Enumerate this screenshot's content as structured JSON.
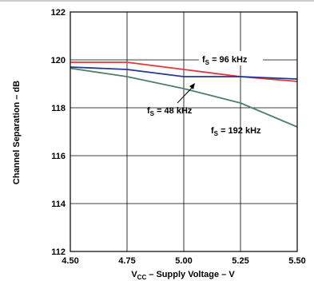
{
  "chart_data": {
    "type": "line",
    "title": "",
    "xlabel_main": "V",
    "xlabel_sub": "CC",
    "xlabel_rest": " – Supply Voltage – V",
    "ylabel": "Channel Separation – dB",
    "xlim": [
      4.5,
      5.5
    ],
    "ylim": [
      112,
      122
    ],
    "x_ticks": [
      "4.50",
      "4.75",
      "5.00",
      "5.25",
      "5.50"
    ],
    "y_ticks": [
      "112",
      "114",
      "116",
      "118",
      "120",
      "122"
    ],
    "grid": true,
    "series": [
      {
        "name": "96 kHz",
        "color": "#e8343c",
        "x": [
          4.5,
          4.75,
          5.0,
          5.25,
          5.5
        ],
        "y": [
          119.9,
          119.9,
          119.6,
          119.3,
          119.1
        ]
      },
      {
        "name": "48 kHz",
        "color": "#1f3a93",
        "x": [
          4.5,
          4.75,
          5.0,
          5.25,
          5.5
        ],
        "y": [
          119.7,
          119.6,
          119.3,
          119.3,
          119.2
        ]
      },
      {
        "name": "192 kHz",
        "color": "#4f7f6a",
        "x": [
          4.5,
          4.75,
          5.0,
          5.25,
          5.5
        ],
        "y": [
          119.65,
          119.3,
          118.8,
          118.2,
          117.2
        ]
      }
    ],
    "annotations": [
      {
        "prefix": "f",
        "sub": "S",
        "text": " = 96 kHz"
      },
      {
        "prefix": "f",
        "sub": "S",
        "text": " = 48 kHz"
      },
      {
        "prefix": "f",
        "sub": "S",
        "text": " = 192 kHz"
      }
    ]
  }
}
